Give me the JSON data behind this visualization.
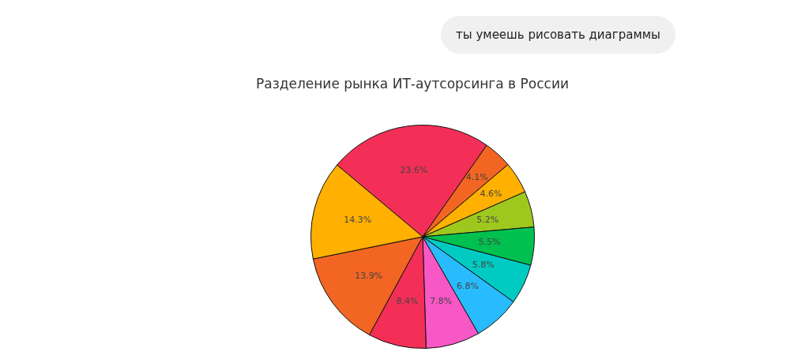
{
  "chart_data": {
    "type": "pie",
    "title": "Разделение рынка ИТ-аутсорсинга в России",
    "annotations": [
      "ты умеешь рисовать диаграммы"
    ],
    "categories": [
      null,
      null,
      null,
      null,
      null,
      null,
      null,
      null,
      null,
      null,
      null
    ],
    "values": [
      23.6,
      4.1,
      4.6,
      5.2,
      5.5,
      5.8,
      6.8,
      7.8,
      8.4,
      13.9,
      14.3
    ],
    "value_labels": [
      "23.6%",
      "4.1%",
      "4.6%",
      "5.2%",
      "5.5%",
      "5.8%",
      "6.8%",
      "7.8%",
      "8.4%",
      "13.9%",
      "14.3%"
    ],
    "colors": [
      "#f42f57",
      "#f26522",
      "#ffb000",
      "#9fc81e",
      "#00c04f",
      "#00cbc3",
      "#28bcff",
      "#f857c6",
      "#f42f57",
      "#f26522",
      "#ffb000"
    ]
  }
}
